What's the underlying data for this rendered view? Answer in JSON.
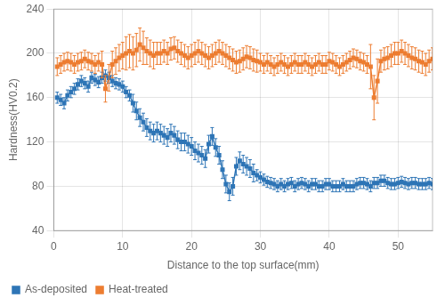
{
  "chart_data": {
    "type": "line",
    "xlabel": "Distance to the top surface(mm)",
    "ylabel": "Hardness(HV0.2)",
    "xlim": [
      0,
      55
    ],
    "ylim": [
      40,
      240
    ],
    "xticks": [
      0,
      10,
      20,
      30,
      40,
      50
    ],
    "yticks": [
      40,
      80,
      120,
      160,
      200,
      240
    ],
    "grid": true,
    "legend": "lower left",
    "x": [
      0.5,
      1,
      1.5,
      2,
      2.5,
      3,
      3.5,
      4,
      4.5,
      5,
      5.5,
      6,
      6.5,
      7,
      7.5,
      8,
      8.5,
      9,
      9.5,
      10,
      10.5,
      11,
      11.5,
      12,
      12.5,
      13,
      13.5,
      14,
      14.5,
      15,
      15.5,
      16,
      16.5,
      17,
      17.5,
      18,
      18.5,
      19,
      19.5,
      20,
      20.5,
      21,
      21.5,
      22,
      22.5,
      23,
      23.5,
      24,
      24.5,
      25,
      25.5,
      26,
      26.5,
      27,
      27.5,
      28,
      28.5,
      29,
      29.5,
      30,
      30.5,
      31,
      31.5,
      32,
      32.5,
      33,
      33.5,
      34,
      34.5,
      35,
      35.5,
      36,
      36.5,
      37,
      37.5,
      38,
      38.5,
      39,
      39.5,
      40,
      40.5,
      41,
      41.5,
      42,
      42.5,
      43,
      43.5,
      44,
      44.5,
      45,
      45.5,
      46,
      46.5,
      47,
      47.5,
      48,
      48.5,
      49,
      49.5,
      50,
      50.5,
      51,
      51.5,
      52,
      52.5,
      53,
      53.5,
      54,
      54.5,
      55
    ],
    "series": [
      {
        "name": "As-deposited",
        "color": "#2e75b6",
        "marker": "square",
        "values": [
          160,
          158,
          155,
          162,
          165,
          168,
          172,
          175,
          173,
          170,
          178,
          176,
          174,
          178,
          180,
          178,
          175,
          173,
          172,
          170,
          165,
          162,
          155,
          148,
          142,
          138,
          133,
          130,
          128,
          130,
          128,
          126,
          124,
          128,
          126,
          122,
          120,
          120,
          118,
          116,
          112,
          110,
          108,
          105,
          118,
          125,
          115,
          108,
          95,
          82,
          75,
          80,
          98,
          103,
          100,
          98,
          96,
          92,
          90,
          88,
          86,
          84,
          83,
          82,
          80,
          82,
          80,
          82,
          83,
          80,
          82,
          83,
          82,
          80,
          82,
          82,
          80,
          80,
          82,
          82,
          80,
          80,
          80,
          82,
          80,
          80,
          80,
          82,
          83,
          83,
          82,
          80,
          83,
          83,
          85,
          85,
          83,
          82,
          82,
          83,
          84,
          83,
          82,
          83,
          83,
          82,
          82,
          82,
          83,
          82
        ],
        "errors": [
          5,
          5,
          5,
          5,
          5,
          5,
          5,
          5,
          5,
          5,
          5,
          5,
          5,
          5,
          5,
          5,
          5,
          5,
          5,
          5,
          5,
          5,
          8,
          8,
          8,
          8,
          8,
          8,
          8,
          8,
          8,
          8,
          8,
          8,
          8,
          8,
          8,
          8,
          8,
          8,
          8,
          8,
          8,
          8,
          8,
          8,
          8,
          8,
          8,
          8,
          8,
          8,
          8,
          8,
          8,
          8,
          8,
          8,
          5,
          5,
          5,
          5,
          5,
          5,
          5,
          5,
          5,
          5,
          5,
          5,
          5,
          5,
          5,
          5,
          5,
          5,
          5,
          5,
          5,
          5,
          5,
          5,
          5,
          5,
          5,
          5,
          5,
          5,
          5,
          5,
          5,
          5,
          5,
          5,
          5,
          5,
          5,
          5,
          5,
          5,
          5,
          5,
          5,
          5,
          5,
          5,
          5,
          5,
          5,
          5
        ]
      },
      {
        "name": "Heat-treated",
        "color": "#ed7d31",
        "marker": "square",
        "values": [
          188,
          190,
          192,
          193,
          192,
          190,
          192,
          193,
          195,
          193,
          192,
          190,
          192,
          190,
          168,
          178,
          190,
          193,
          196,
          198,
          200,
          202,
          200,
          203,
          208,
          205,
          202,
          200,
          198,
          200,
          200,
          202,
          200,
          204,
          205,
          202,
          200,
          198,
          196,
          198,
          200,
          202,
          200,
          198,
          196,
          198,
          200,
          202,
          200,
          198,
          196,
          194,
          192,
          193,
          195,
          197,
          196,
          194,
          193,
          192,
          190,
          192,
          190,
          188,
          190,
          192,
          190,
          188,
          190,
          192,
          190,
          190,
          192,
          190,
          188,
          190,
          192,
          190,
          190,
          193,
          192,
          190,
          188,
          190,
          192,
          194,
          196,
          195,
          193,
          192,
          190,
          188,
          160,
          175,
          193,
          195,
          196,
          198,
          200,
          200,
          202,
          200,
          198,
          196,
          195,
          193,
          192,
          190,
          193,
          195
        ],
        "errors": [
          8,
          8,
          8,
          8,
          8,
          8,
          8,
          8,
          8,
          8,
          8,
          8,
          8,
          12,
          12,
          12,
          12,
          12,
          12,
          12,
          15,
          15,
          15,
          15,
          15,
          15,
          12,
          12,
          12,
          10,
          10,
          10,
          10,
          10,
          10,
          10,
          10,
          10,
          10,
          10,
          10,
          10,
          10,
          10,
          10,
          10,
          10,
          10,
          10,
          10,
          10,
          10,
          10,
          10,
          10,
          10,
          10,
          10,
          10,
          8,
          8,
          8,
          8,
          8,
          8,
          8,
          8,
          8,
          8,
          8,
          8,
          8,
          8,
          8,
          8,
          8,
          8,
          8,
          8,
          8,
          8,
          8,
          8,
          8,
          8,
          8,
          8,
          8,
          8,
          8,
          8,
          20,
          20,
          20,
          10,
          10,
          10,
          10,
          10,
          10,
          10,
          10,
          10,
          10,
          10,
          10,
          10,
          10,
          10,
          10
        ]
      }
    ]
  }
}
